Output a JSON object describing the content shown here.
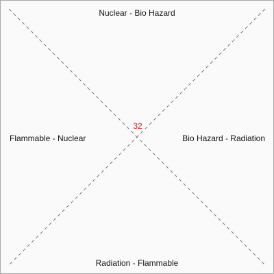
{
  "board": {
    "top_label": "Nuclear - Bio Hazard",
    "right_label": "Bio Hazard - Radiation",
    "bottom_label": "Radiation - Flammable",
    "left_label": "Flammable - Nuclear",
    "center_value": "32"
  },
  "colors": {
    "center_value": "#e02020",
    "diagonal_lines": "#7a7a7a",
    "background": "#fafafa",
    "border": "#a8a8a8"
  }
}
